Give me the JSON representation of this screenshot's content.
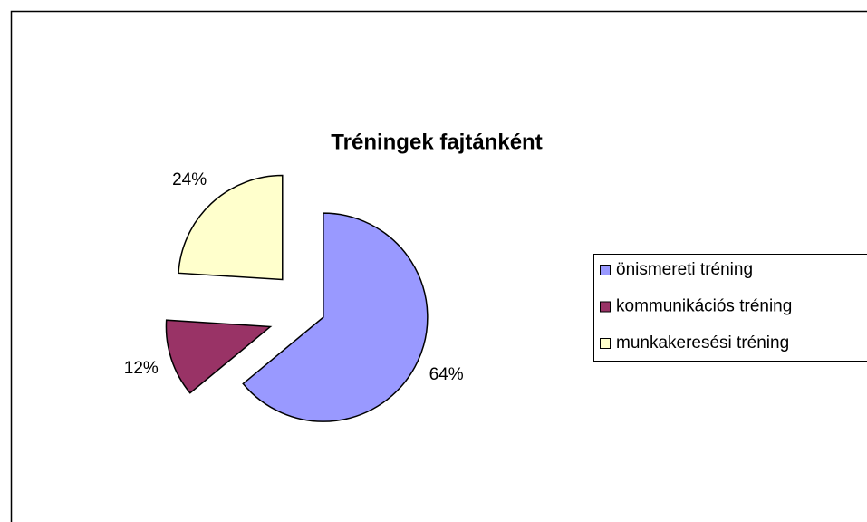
{
  "chart_data": {
    "type": "pie",
    "title": "Tréningek fajtánként",
    "categories": [
      "önismereti tréning",
      "kommunikációs tréning",
      "munkakeresési tréning"
    ],
    "values": [
      64,
      12,
      24
    ],
    "value_labels": [
      "64%",
      "12%",
      "24%"
    ],
    "colors": [
      "#9999ff",
      "#993366",
      "#ffffcc"
    ],
    "legend": "right"
  }
}
